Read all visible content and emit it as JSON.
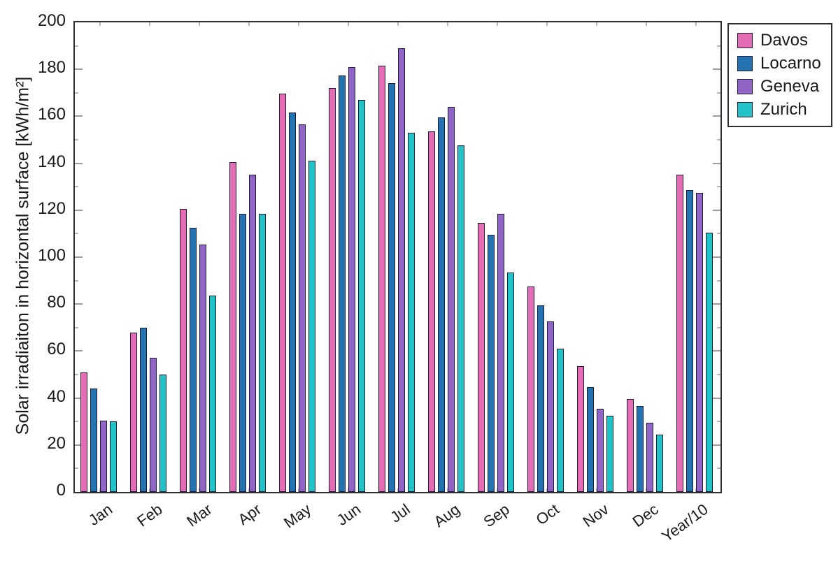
{
  "chart_data": {
    "type": "bar",
    "title": "",
    "xlabel": "",
    "ylabel": "Solar irradiaiton in horizontal surface [kWh/m²]",
    "ylim": [
      0,
      200
    ],
    "ytick_step": 20,
    "ytick_minor_step": 10,
    "grid": false,
    "legend_position": "top-right-outside",
    "categories": [
      "Jan",
      "Feb",
      "Mar",
      "Apr",
      "May",
      "Jun",
      "Jul",
      "Aug",
      "Sep",
      "Oct",
      "Nov",
      "Dec",
      "Year/10"
    ],
    "series": [
      {
        "name": "Davos",
        "color": "#e46cb5",
        "values": [
          51,
          68,
          120.5,
          140.5,
          169.5,
          172,
          181.5,
          153.5,
          114.5,
          87.5,
          53.5,
          39.5,
          135
        ]
      },
      {
        "name": "Locarno",
        "color": "#2273b0",
        "values": [
          44,
          70,
          112.5,
          118.5,
          161.5,
          177.5,
          174,
          159.5,
          109.5,
          79.5,
          44.5,
          36.5,
          128.5
        ]
      },
      {
        "name": "Geneva",
        "color": "#9065c5",
        "values": [
          30.5,
          57,
          105.5,
          135,
          156.5,
          181,
          189,
          164,
          118.5,
          72.5,
          35.5,
          29.5,
          127.5
        ]
      },
      {
        "name": "Zurich",
        "color": "#22c3c7",
        "values": [
          30,
          50,
          83.5,
          118.5,
          141,
          167,
          153,
          147.5,
          93.5,
          61,
          32.5,
          24.5,
          110.5
        ]
      }
    ],
    "bar_outline_color": "#1c1c3a",
    "axis_color": "#2f2f2f",
    "ytick_labels": [
      "0",
      "20",
      "40",
      "60",
      "80",
      "100",
      "120",
      "140",
      "160",
      "180",
      "200"
    ]
  }
}
